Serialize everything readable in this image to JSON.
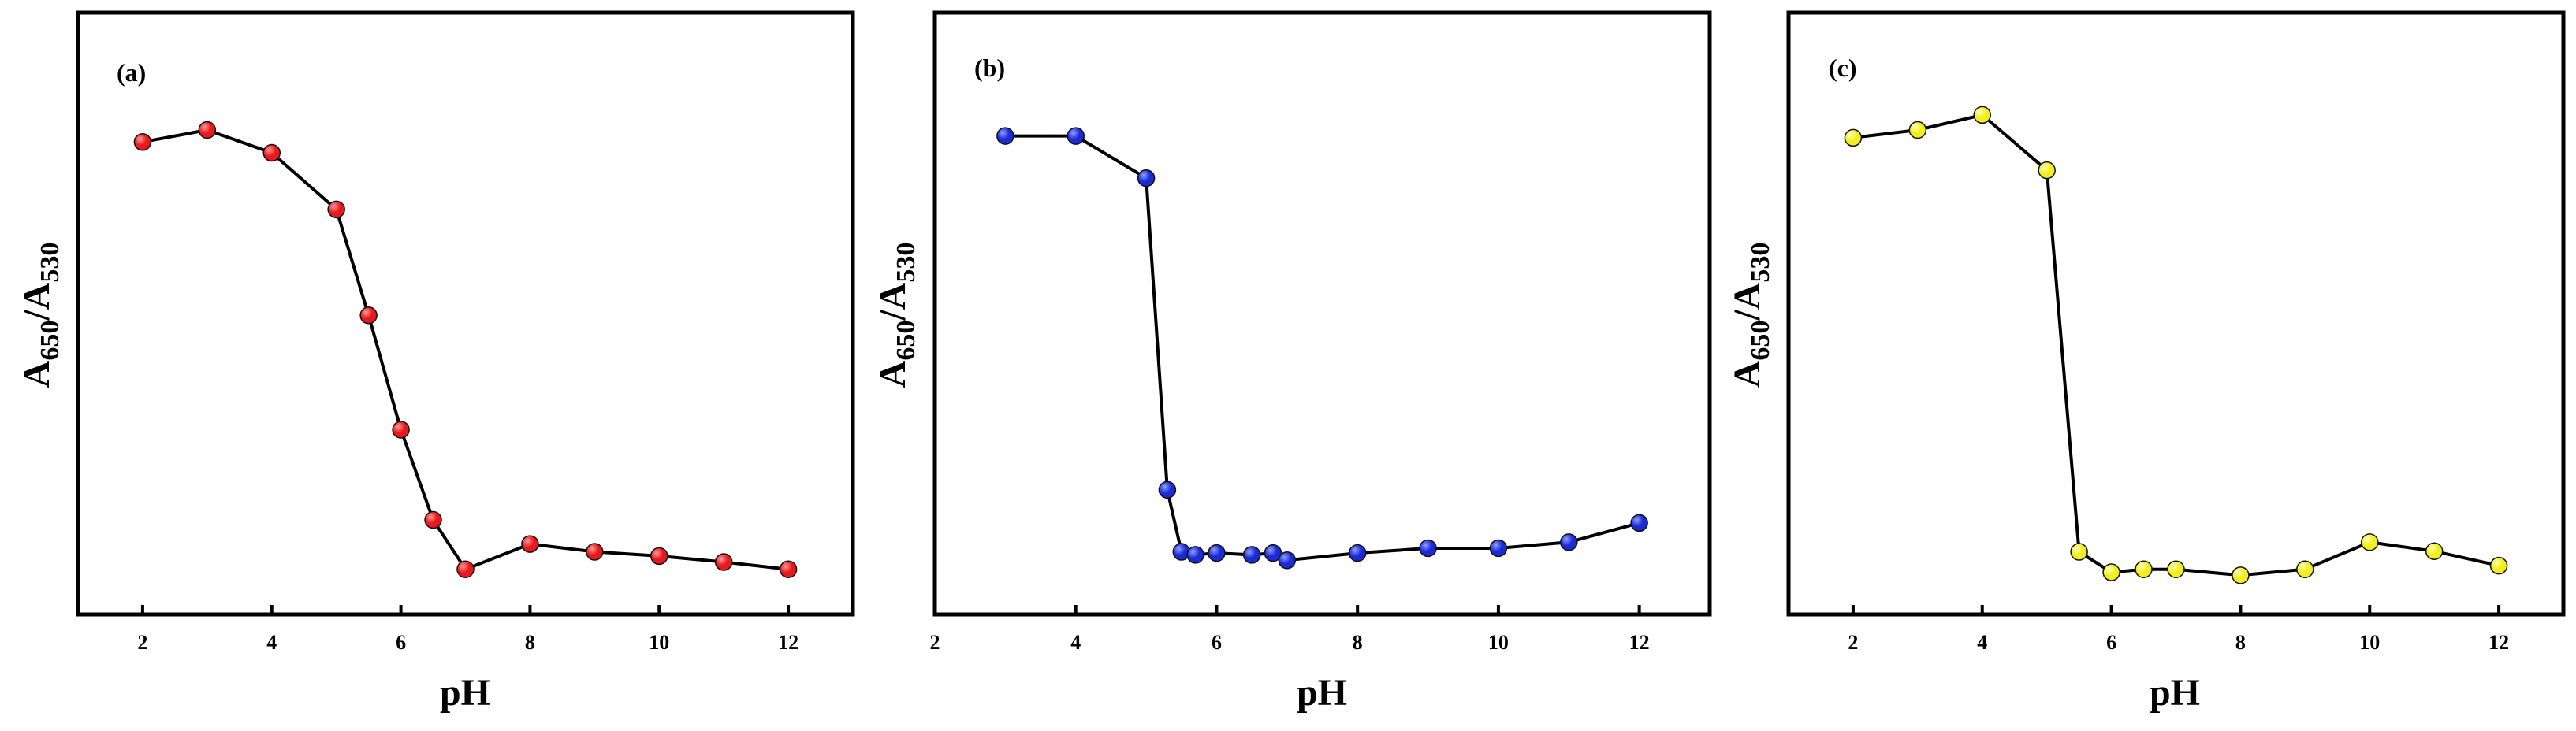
{
  "chart_data": [
    {
      "type": "line",
      "panel_label": "(a)",
      "xlabel": "pH",
      "ylabel_main": "A",
      "ylabel_sub1": "650",
      "ylabel_slash": "/A",
      "ylabel_sub2": "530",
      "xlim": [
        1,
        13
      ],
      "ylim": [
        0,
        1
      ],
      "xticks": [
        2,
        4,
        6,
        8,
        10,
        12
      ],
      "marker_color": "#e8191c",
      "marker_highlight": "#ff9a9a",
      "x": [
        2,
        3,
        4,
        5,
        5.5,
        6,
        6.5,
        7,
        8,
        9,
        10,
        11,
        12
      ],
      "y": [
        0.785,
        0.805,
        0.767,
        0.673,
        0.497,
        0.307,
        0.157,
        0.075,
        0.117,
        0.104,
        0.097,
        0.087,
        0.075
      ]
    },
    {
      "type": "line",
      "panel_label": "(b)",
      "xlabel": "pH",
      "ylabel_main": "A",
      "ylabel_sub1": "650",
      "ylabel_slash": "/A",
      "ylabel_sub2": "530",
      "xlim": [
        2,
        13
      ],
      "ylim": [
        0,
        1
      ],
      "xticks": [
        2,
        4,
        6,
        8,
        10,
        12
      ],
      "marker_color": "#1c2ad4",
      "marker_highlight": "#8fa0ff",
      "x": [
        3,
        4,
        5,
        5.3,
        5.5,
        5.7,
        6,
        6.5,
        6.8,
        7,
        8,
        9,
        10,
        11,
        12
      ],
      "y": [
        0.795,
        0.795,
        0.725,
        0.207,
        0.104,
        0.099,
        0.102,
        0.099,
        0.102,
        0.09,
        0.102,
        0.11,
        0.11,
        0.12,
        0.152
      ]
    },
    {
      "type": "line",
      "panel_label": "(c)",
      "xlabel": "pH",
      "ylabel_main": "A",
      "ylabel_sub1": "650",
      "ylabel_slash": "/A",
      "ylabel_sub2": "530",
      "xlim": [
        1,
        13
      ],
      "ylim": [
        0,
        1
      ],
      "xticks": [
        2,
        4,
        6,
        8,
        10,
        12
      ],
      "marker_color": "#f2ee1b",
      "marker_highlight": "#ffffc2",
      "x": [
        2,
        3,
        4,
        5,
        5.5,
        6,
        6.5,
        7,
        8,
        9,
        10,
        11,
        12
      ],
      "y": [
        0.792,
        0.805,
        0.83,
        0.738,
        0.104,
        0.07,
        0.075,
        0.075,
        0.065,
        0.075,
        0.12,
        0.105,
        0.081
      ]
    }
  ]
}
